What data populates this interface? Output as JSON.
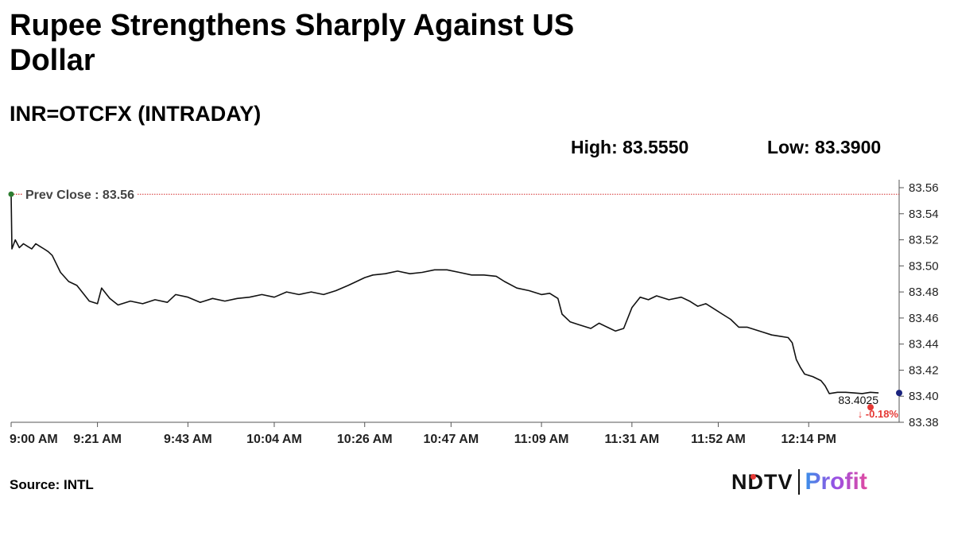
{
  "header": {
    "title": "Rupee Strengthens Sharply Against US Dollar",
    "subtitle": "INR=OTCFX (INTRADAY)",
    "high": "High: 83.5550",
    "low": "Low: 83.3900"
  },
  "footer": {
    "source": "Source: INTL",
    "logo_left": "NDTV",
    "logo_right": "Profit"
  },
  "colors": {
    "line": "#111111",
    "prev_close_line": "#d32f2f",
    "prev_close_dot": "#2e7d32",
    "last_dot": "#1a237e",
    "change_down": "#e53935"
  },
  "chart_data": {
    "type": "line",
    "title": "INR=OTCFX (INTRADAY)",
    "ylim": [
      83.38,
      83.56
    ],
    "y_ticks": [
      "83.56",
      "83.54",
      "83.52",
      "83.50",
      "83.48",
      "83.46",
      "83.44",
      "83.42",
      "83.40",
      "83.38"
    ],
    "x_ticks": [
      "9:00 AM",
      "9:21 AM",
      "9:43 AM",
      "10:04 AM",
      "10:26 AM",
      "10:47 AM",
      "11:09 AM",
      "11:31 AM",
      "11:52 AM",
      "12:14 PM"
    ],
    "x_tick_minutes": [
      0,
      21,
      43,
      64,
      86,
      107,
      129,
      151,
      172,
      194
    ],
    "x_range_minutes": [
      0,
      216
    ],
    "prev_close": {
      "label": "Prev Close : 83.56",
      "value": 83.555
    },
    "last": {
      "label": "83.4025",
      "value": 83.4025,
      "change": "↓ -0.18%"
    },
    "series": [
      {
        "values": [
          [
            0,
            83.555
          ],
          [
            0.2,
            83.513
          ],
          [
            1,
            83.52
          ],
          [
            2,
            83.514
          ],
          [
            3,
            83.517
          ],
          [
            4,
            83.515
          ],
          [
            5,
            83.513
          ],
          [
            6,
            83.517
          ],
          [
            7,
            83.515
          ],
          [
            8,
            83.513
          ],
          [
            9,
            83.511
          ],
          [
            10,
            83.508
          ],
          [
            12,
            83.495
          ],
          [
            14,
            83.488
          ],
          [
            16,
            83.485
          ],
          [
            18,
            83.477
          ],
          [
            19,
            83.473
          ],
          [
            21,
            83.471
          ],
          [
            22,
            83.483
          ],
          [
            24,
            83.475
          ],
          [
            26,
            83.47
          ],
          [
            29,
            83.473
          ],
          [
            32,
            83.471
          ],
          [
            35,
            83.474
          ],
          [
            38,
            83.472
          ],
          [
            40,
            83.478
          ],
          [
            43,
            83.476
          ],
          [
            46,
            83.472
          ],
          [
            49,
            83.475
          ],
          [
            52,
            83.473
          ],
          [
            55,
            83.475
          ],
          [
            58,
            83.476
          ],
          [
            61,
            83.478
          ],
          [
            64,
            83.476
          ],
          [
            67,
            83.48
          ],
          [
            70,
            83.478
          ],
          [
            73,
            83.48
          ],
          [
            76,
            83.478
          ],
          [
            79,
            83.481
          ],
          [
            82,
            83.485
          ],
          [
            84,
            83.488
          ],
          [
            86,
            83.491
          ],
          [
            88,
            83.493
          ],
          [
            91,
            83.494
          ],
          [
            94,
            83.496
          ],
          [
            97,
            83.494
          ],
          [
            100,
            83.495
          ],
          [
            103,
            83.497
          ],
          [
            106,
            83.497
          ],
          [
            109,
            83.495
          ],
          [
            112,
            83.493
          ],
          [
            115,
            83.493
          ],
          [
            118,
            83.492
          ],
          [
            120,
            83.488
          ],
          [
            123,
            83.483
          ],
          [
            126,
            83.481
          ],
          [
            129,
            83.478
          ],
          [
            131,
            83.479
          ],
          [
            133,
            83.475
          ],
          [
            134,
            83.463
          ],
          [
            136,
            83.457
          ],
          [
            138,
            83.455
          ],
          [
            141,
            83.452
          ],
          [
            143,
            83.456
          ],
          [
            145,
            83.453
          ],
          [
            147,
            83.45
          ],
          [
            149,
            83.452
          ],
          [
            151,
            83.468
          ],
          [
            153,
            83.476
          ],
          [
            155,
            83.474
          ],
          [
            157,
            83.477
          ],
          [
            160,
            83.474
          ],
          [
            163,
            83.476
          ],
          [
            165,
            83.473
          ],
          [
            167,
            83.469
          ],
          [
            169,
            83.471
          ],
          [
            171,
            83.467
          ],
          [
            173,
            83.463
          ],
          [
            175,
            83.459
          ],
          [
            177,
            83.453
          ],
          [
            179,
            83.453
          ],
          [
            181,
            83.451
          ],
          [
            183,
            83.449
          ],
          [
            185,
            83.447
          ],
          [
            187,
            83.446
          ],
          [
            189,
            83.445
          ],
          [
            190,
            83.441
          ],
          [
            191,
            83.428
          ],
          [
            192,
            83.422
          ],
          [
            193,
            83.417
          ],
          [
            195,
            83.415
          ],
          [
            197,
            83.412
          ],
          [
            198,
            83.408
          ],
          [
            199,
            83.402
          ],
          [
            201,
            83.403
          ],
          [
            203,
            83.403
          ],
          [
            205,
            83.4025
          ],
          [
            207,
            83.402
          ],
          [
            209,
            83.403
          ],
          [
            211,
            83.4025
          ]
        ]
      }
    ]
  }
}
